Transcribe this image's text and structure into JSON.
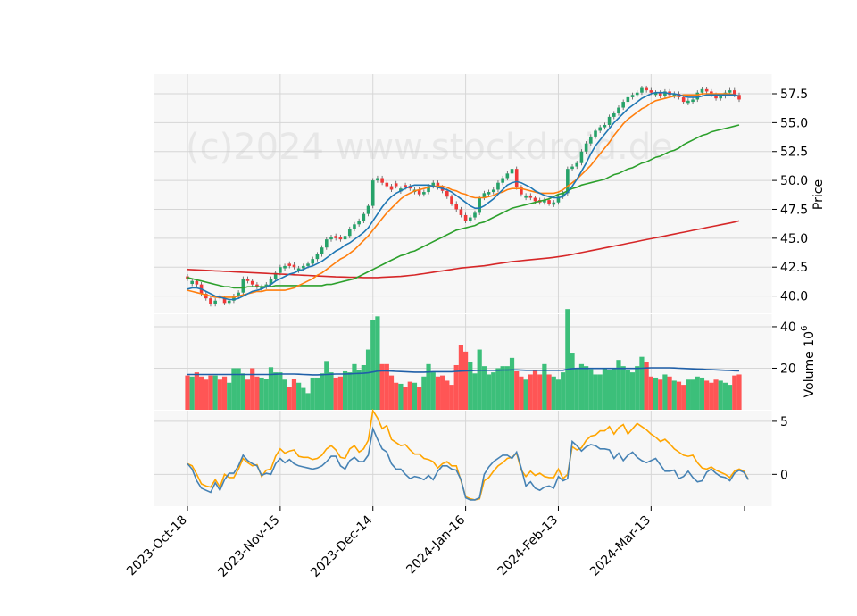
{
  "watermark": "(c)2024 www.stockdroid.de",
  "colors": {
    "up": "#26a269",
    "down": "#f03838",
    "vol_up": "#3cbf7a",
    "vol_down": "#ff5555",
    "ma_short": "#1f77b4",
    "ma_mid": "#ff7f0e",
    "ma_long": "#2ca02c",
    "ma_200": "#d62728",
    "vol_ma": "#1f5fa8",
    "ind_a": "#4682b4",
    "ind_b": "#ffa500",
    "panel_bg": "#f7f7f7",
    "grid": "#d6d6d6"
  },
  "chart_data": {
    "type": "candlestick",
    "price_label": "Price",
    "volume_label": "Volume",
    "volume_exponent": "6",
    "price_ylim": [
      38.5,
      59.2
    ],
    "price_ticks": [
      "40.0",
      "42.5",
      "45.0",
      "47.5",
      "50.0",
      "52.5",
      "55.0",
      "57.5"
    ],
    "volume_ylim": [
      0,
      46
    ],
    "volume_ticks": [
      "20",
      "40"
    ],
    "indicator_ylim": [
      -3,
      6
    ],
    "indicator_ticks": [
      "0",
      "5"
    ],
    "x_tick_labels": [
      "2023-Oct-18",
      "2023-Nov-15",
      "2023-Dec-14",
      "2024-Jan-16",
      "2024-Feb-13",
      "2024-Mar-13"
    ],
    "x_tick_index": [
      0,
      20,
      40,
      60,
      80,
      100
    ],
    "close": [
      41.5,
      41.3,
      41.0,
      40.2,
      39.8,
      39.3,
      39.6,
      39.8,
      39.4,
      39.6,
      40.0,
      40.3,
      41.5,
      41.3,
      41.0,
      40.8,
      40.8,
      41.0,
      41.5,
      42.0,
      42.5,
      42.6,
      42.6,
      42.5,
      42.4,
      42.6,
      42.8,
      43.2,
      43.6,
      44.2,
      44.9,
      45.1,
      45.0,
      44.9,
      45.2,
      45.8,
      46.2,
      46.5,
      47.1,
      47.8,
      50.0,
      50.2,
      49.8,
      49.5,
      49.2,
      49.5,
      49.3,
      49.4,
      49.3,
      49.2,
      48.8,
      49.0,
      49.5,
      49.8,
      49.4,
      49.1,
      48.6,
      48.0,
      47.5,
      47.0,
      46.5,
      46.8,
      47.2,
      48.5,
      48.9,
      49.0,
      49.2,
      49.8,
      50.2,
      50.6,
      51.0,
      49.4,
      48.8,
      48.7,
      48.5,
      48.2,
      48.1,
      48.3,
      48.0,
      48.1,
      48.6,
      48.9,
      51.0,
      51.2,
      51.5,
      52.5,
      53.2,
      53.8,
      54.3,
      54.6,
      54.8,
      55.5,
      55.8,
      56.3,
      56.8,
      57.2,
      57.4,
      57.6,
      58.0,
      57.8,
      57.6,
      57.6,
      57.3,
      57.7,
      57.4,
      57.5,
      57.2,
      56.8,
      56.9,
      57.0,
      57.6,
      57.9,
      57.7,
      57.4,
      57.1,
      57.3,
      57.6,
      57.8,
      57.4,
      57.0
    ],
    "direction": "1=up 0=down",
    "up_flags": [
      0,
      1,
      0,
      0,
      0,
      0,
      1,
      0,
      0,
      1,
      1,
      1,
      1,
      0,
      0,
      0,
      1,
      1,
      1,
      1,
      1,
      1,
      0,
      0,
      1,
      1,
      1,
      1,
      1,
      1,
      1,
      1,
      0,
      0,
      1,
      1,
      1,
      1,
      1,
      1,
      1,
      1,
      0,
      0,
      0,
      0,
      1,
      0,
      0,
      1,
      0,
      1,
      1,
      1,
      0,
      0,
      0,
      0,
      0,
      0,
      0,
      1,
      1,
      1,
      1,
      1,
      1,
      1,
      1,
      1,
      1,
      0,
      0,
      1,
      0,
      0,
      0,
      1,
      0,
      1,
      1,
      1,
      1,
      1,
      1,
      1,
      1,
      1,
      1,
      1,
      1,
      1,
      1,
      1,
      1,
      1,
      1,
      1,
      1,
      0,
      0,
      1,
      0,
      1,
      0,
      1,
      0,
      0,
      1,
      1,
      1,
      1,
      0,
      0,
      0,
      1,
      1,
      1,
      0,
      0
    ],
    "ma_short": [
      40.6,
      40.7,
      40.7,
      40.6,
      40.4,
      40.2,
      40.0,
      39.9,
      39.8,
      39.7,
      39.7,
      39.8,
      40.0,
      40.2,
      40.4,
      40.5,
      40.6,
      40.8,
      41.0,
      41.3,
      41.5,
      41.7,
      41.9,
      42.0,
      42.2,
      42.3,
      42.5,
      42.6,
      42.8,
      43.0,
      43.3,
      43.6,
      43.9,
      44.1,
      44.4,
      44.6,
      44.9,
      45.2,
      45.5,
      45.9,
      46.5,
      47.1,
      47.7,
      48.2,
      48.6,
      48.9,
      49.1,
      49.3,
      49.5,
      49.6,
      49.6,
      49.6,
      49.6,
      49.5,
      49.4,
      49.3,
      49.2,
      49.0,
      48.7,
      48.4,
      48.1,
      47.8,
      47.6,
      47.6,
      47.8,
      48.1,
      48.4,
      48.8,
      49.2,
      49.6,
      49.8,
      49.9,
      49.8,
      49.6,
      49.4,
      49.1,
      48.9,
      48.7,
      48.6,
      48.5,
      48.5,
      48.6,
      49.0,
      49.5,
      50.1,
      50.8,
      51.5,
      52.3,
      53.0,
      53.5,
      54.0,
      54.5,
      55.0,
      55.4,
      55.8,
      56.2,
      56.5,
      56.8,
      57.1,
      57.3,
      57.5,
      57.6,
      57.6,
      57.6,
      57.5,
      57.5,
      57.4,
      57.3,
      57.2,
      57.2,
      57.2,
      57.3,
      57.4,
      57.4,
      57.4,
      57.4,
      57.4,
      57.4,
      57.4,
      57.3
    ],
    "ma_mid": [
      40.5,
      40.4,
      40.3,
      40.2,
      40.1,
      40.0,
      39.9,
      39.9,
      39.9,
      39.9,
      39.9,
      40.0,
      40.1,
      40.2,
      40.3,
      40.4,
      40.4,
      40.5,
      40.5,
      40.5,
      40.5,
      40.5,
      40.6,
      40.7,
      40.9,
      41.1,
      41.3,
      41.5,
      41.8,
      42.0,
      42.3,
      42.6,
      42.9,
      43.2,
      43.4,
      43.7,
      44.0,
      44.4,
      44.8,
      45.2,
      45.7,
      46.2,
      46.7,
      47.2,
      47.6,
      48.0,
      48.4,
      48.7,
      48.9,
      49.1,
      49.2,
      49.3,
      49.4,
      49.5,
      49.5,
      49.5,
      49.4,
      49.2,
      49.1,
      48.9,
      48.8,
      48.6,
      48.5,
      48.5,
      48.5,
      48.6,
      48.7,
      48.9,
      49.0,
      49.2,
      49.3,
      49.3,
      49.3,
      49.2,
      49.1,
      49.0,
      48.9,
      48.9,
      48.9,
      48.9,
      49.0,
      49.2,
      49.5,
      49.8,
      50.1,
      50.5,
      50.9,
      51.3,
      51.8,
      52.3,
      52.8,
      53.3,
      53.9,
      54.4,
      54.9,
      55.3,
      55.6,
      55.9,
      56.2,
      56.4,
      56.7,
      56.9,
      57.0,
      57.1,
      57.2,
      57.3,
      57.3,
      57.4,
      57.4,
      57.4,
      57.4,
      57.5,
      57.5,
      57.5,
      57.5,
      57.5,
      57.5,
      57.5,
      57.4,
      57.3
    ],
    "ma_long": [
      41.6,
      41.5,
      41.4,
      41.3,
      41.2,
      41.1,
      41.0,
      40.9,
      40.8,
      40.8,
      40.7,
      40.7,
      40.7,
      40.8,
      40.8,
      40.8,
      40.8,
      40.8,
      40.8,
      40.9,
      40.9,
      40.9,
      40.9,
      40.9,
      40.9,
      40.9,
      40.9,
      40.9,
      40.9,
      40.9,
      41.0,
      41.0,
      41.1,
      41.2,
      41.3,
      41.4,
      41.5,
      41.7,
      41.9,
      42.1,
      42.3,
      42.5,
      42.7,
      42.9,
      43.1,
      43.3,
      43.5,
      43.6,
      43.8,
      43.9,
      44.1,
      44.3,
      44.5,
      44.7,
      44.9,
      45.1,
      45.3,
      45.5,
      45.7,
      45.8,
      45.9,
      46.0,
      46.1,
      46.3,
      46.4,
      46.6,
      46.8,
      47.0,
      47.2,
      47.4,
      47.6,
      47.7,
      47.8,
      47.9,
      48.0,
      48.1,
      48.2,
      48.3,
      48.4,
      48.6,
      48.8,
      48.9,
      49.1,
      49.3,
      49.4,
      49.6,
      49.7,
      49.8,
      49.9,
      50.0,
      50.1,
      50.3,
      50.5,
      50.6,
      50.8,
      51.0,
      51.1,
      51.3,
      51.5,
      51.6,
      51.8,
      52.0,
      52.1,
      52.3,
      52.5,
      52.6,
      52.8,
      53.1,
      53.3,
      53.5,
      53.7,
      53.9,
      54.0,
      54.2,
      54.3,
      54.4,
      54.5,
      54.6,
      54.7,
      54.8
    ],
    "ma_200": [
      42.3,
      42.28,
      42.26,
      42.24,
      42.22,
      42.2,
      42.18,
      42.16,
      42.14,
      42.12,
      42.1,
      42.08,
      42.06,
      42.04,
      42.02,
      42.0,
      41.98,
      41.96,
      41.94,
      41.92,
      41.9,
      41.88,
      41.86,
      41.84,
      41.82,
      41.8,
      41.78,
      41.76,
      41.74,
      41.72,
      41.7,
      41.68,
      41.66,
      41.65,
      41.64,
      41.63,
      41.62,
      41.61,
      41.6,
      41.6,
      41.6,
      41.6,
      41.62,
      41.64,
      41.66,
      41.68,
      41.7,
      41.74,
      41.78,
      41.82,
      41.88,
      41.94,
      42.0,
      42.06,
      42.12,
      42.18,
      42.24,
      42.3,
      42.36,
      42.42,
      42.46,
      42.5,
      42.54,
      42.58,
      42.62,
      42.68,
      42.74,
      42.8,
      42.86,
      42.92,
      42.98,
      43.02,
      43.06,
      43.1,
      43.14,
      43.18,
      43.22,
      43.26,
      43.3,
      43.34,
      43.4,
      43.46,
      43.52,
      43.6,
      43.68,
      43.76,
      43.84,
      43.92,
      44.0,
      44.08,
      44.16,
      44.24,
      44.32,
      44.4,
      44.48,
      44.56,
      44.64,
      44.72,
      44.8,
      44.88,
      44.96,
      45.04,
      45.12,
      45.2,
      45.28,
      45.36,
      45.44,
      45.52,
      45.6,
      45.68,
      45.76,
      45.84,
      45.92,
      46.0,
      46.08,
      46.16,
      46.24,
      46.32,
      46.4,
      46.5
    ],
    "volume": [
      16.5,
      16,
      18,
      16,
      14.5,
      16.5,
      16.5,
      14.5,
      16,
      13,
      20,
      20,
      17.5,
      14.5,
      20,
      16,
      15.5,
      15,
      20.5,
      18,
      18,
      14.5,
      11,
      15,
      13,
      10.5,
      8,
      15.5,
      15.5,
      17.5,
      23.5,
      18,
      15.5,
      16,
      18.5,
      18,
      22,
      19,
      21.5,
      29,
      43,
      45,
      22,
      22,
      16.5,
      13,
      12.5,
      11,
      13.5,
      13,
      11,
      16,
      22,
      18,
      16,
      16.5,
      14,
      12,
      21.5,
      31,
      28,
      23,
      17.5,
      29,
      21,
      17,
      18,
      20,
      21,
      21,
      25,
      18.5,
      16,
      14.5,
      17,
      19,
      17,
      22,
      17,
      16,
      14.5,
      18,
      48.5,
      27.5,
      20,
      22,
      21,
      19.5,
      17,
      17,
      20,
      19,
      20,
      24,
      21,
      19,
      18,
      21,
      25.5,
      23,
      16,
      15.5,
      14.5,
      17,
      16,
      14,
      13.5,
      12,
      14.5,
      14.5,
      16,
      15.5,
      14,
      13,
      14.5,
      14,
      13,
      12,
      16.5,
      17
    ],
    "volume_ma": [
      17,
      17,
      17,
      17,
      17,
      17,
      17,
      17,
      17,
      17,
      17,
      17,
      17,
      17,
      17,
      17,
      17,
      17,
      17,
      17.1,
      17.2,
      17.2,
      17.2,
      17.2,
      17.1,
      17,
      16.9,
      16.8,
      16.8,
      16.9,
      17,
      17.1,
      17.2,
      17.2,
      17.2,
      17.3,
      17.4,
      17.5,
      17.6,
      17.8,
      18.2,
      18.6,
      18.7,
      18.7,
      18.6,
      18.5,
      18.4,
      18.3,
      18.2,
      18.1,
      18.1,
      18.1,
      18.2,
      18.3,
      18.3,
      18.3,
      18.3,
      18.3,
      18.5,
      18.6,
      18.7,
      18.8,
      18.9,
      19,
      19,
      19,
      19,
      19,
      19.1,
      19.1,
      19.2,
      19.2,
      19.1,
      19,
      19,
      19,
      19,
      19,
      19,
      19,
      19,
      19,
      19.5,
      19.8,
      19.9,
      19.9,
      19.9,
      19.9,
      19.9,
      19.9,
      19.9,
      19.9,
      19.9,
      19.9,
      19.9,
      19.9,
      19.9,
      19.9,
      20,
      20.1,
      20.2,
      20.2,
      20.2,
      20.2,
      20.2,
      20.1,
      20,
      19.9,
      19.8,
      19.7,
      19.6,
      19.5,
      19.4,
      19.3,
      19.2,
      19.1,
      19,
      18.9,
      18.8,
      18.7
    ],
    "indicator_a": [
      1,
      0.5,
      -0.6,
      -1.3,
      -1.5,
      -1.7,
      -0.8,
      -1.5,
      -0.5,
      0.1,
      0.1,
      0.8,
      1.8,
      1.3,
      1,
      0.8,
      -0.1,
      0.1,
      0,
      1,
      1.5,
      1.1,
      1.4,
      1,
      0.8,
      0.7,
      0.6,
      0.5,
      0.6,
      0.8,
      1.2,
      1.7,
      1.7,
      0.8,
      0.5,
      1.3,
      1.6,
      1.2,
      1.2,
      1.8,
      4.3,
      3.3,
      2.4,
      2.1,
      1,
      0.5,
      0.5,
      0,
      -0.4,
      -0.2,
      -0.3,
      -0.5,
      -0.1,
      -0.5,
      0.3,
      0.8,
      0.8,
      0.5,
      0.4,
      -0.5,
      -2.2,
      -2.4,
      -2.4,
      -2.2,
      0,
      0.7,
      1.2,
      1.5,
      1.8,
      1.8,
      1.5,
      2.1,
      0.6,
      -1.1,
      -0.7,
      -1.3,
      -1.5,
      -1.2,
      -1.1,
      -1.3,
      -0.2,
      -0.6,
      -0.4,
      3.1,
      2.7,
      2.2,
      2.6,
      2.8,
      2.7,
      2.4,
      2.4,
      2.3,
      1.5,
      2,
      1.3,
      1.8,
      2.1,
      1.6,
      1.3,
      1.1,
      1.3,
      1.5,
      0.9,
      0.3,
      0.3,
      0.4,
      -0.4,
      -0.2,
      0.3,
      -0.3,
      -0.7,
      -0.6,
      0.2,
      0.5,
      0.1,
      -0.2,
      -0.3,
      -0.6,
      0.1,
      0.4,
      0.2,
      -0.5
    ],
    "indicator_b": [
      1,
      0.8,
      0,
      -0.9,
      -1.1,
      -1.2,
      -0.5,
      -1.2,
      0,
      -0.3,
      -0.3,
      0.5,
      1.5,
      1.1,
      0.8,
      0.9,
      -0.2,
      0.4,
      0.5,
      1.7,
      2.4,
      2,
      2.2,
      2.3,
      1.7,
      1.6,
      1.6,
      1.4,
      1.5,
      1.8,
      2.4,
      2.7,
      2.3,
      1.6,
      1.5,
      2.4,
      2.7,
      2.1,
      2.4,
      3.2,
      6,
      5.3,
      4.3,
      4.6,
      3.3,
      3,
      2.7,
      2.8,
      2.3,
      1.9,
      1.9,
      1.5,
      1.4,
      1.2,
      0.6,
      1,
      1.2,
      0.8,
      0.8,
      -0.6,
      -2.1,
      -2.3,
      -2.4,
      -2.3,
      -0.6,
      -0.3,
      0.3,
      0.8,
      1.1,
      1.5,
      1.6,
      2,
      0.4,
      -0.2,
      0.3,
      -0.1,
      0.1,
      -0.2,
      -0.3,
      -0.3,
      0.5,
      -0.4,
      0,
      2.6,
      2.3,
      2.5,
      3.2,
      3.6,
      3.7,
      4.1,
      4.1,
      4.5,
      3.8,
      4.4,
      4.7,
      3.8,
      4.3,
      4.8,
      4.5,
      4.2,
      3.8,
      3.5,
      3.1,
      3.3,
      2.9,
      2.4,
      2.1,
      1.8,
      1.7,
      1.8,
      1.1,
      0.6,
      0.5,
      0.7,
      0.4,
      0.2,
      0,
      -0.3,
      0.3,
      0.5,
      0.3,
      -0.5
    ]
  }
}
